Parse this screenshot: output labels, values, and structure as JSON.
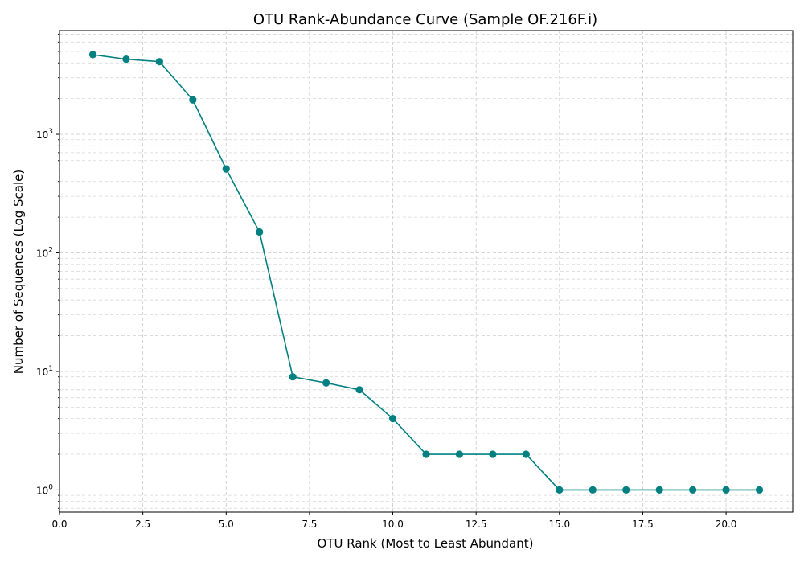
{
  "chart_data": {
    "type": "line",
    "title": "OTU Rank-Abundance Curve (Sample OF.216F.i)",
    "xlabel": "OTU Rank (Most to Least Abundant)",
    "ylabel": "Number of Sequences (Log Scale)",
    "y_scale": "log",
    "xlim": [
      0,
      22.0
    ],
    "ylim": [
      0.65,
      7500
    ],
    "x_ticks": [
      0,
      2.5,
      5.0,
      7.5,
      10.0,
      12.5,
      15.0,
      17.5,
      20.0
    ],
    "x_tick_labels": [
      "0.0",
      "2.5",
      "5.0",
      "7.5",
      "10.0",
      "12.5",
      "15.0",
      "17.5",
      "20.0"
    ],
    "y_ticks": [
      1,
      10,
      100,
      1000
    ],
    "y_tick_base": "10",
    "y_tick_exponents": [
      "0",
      "1",
      "2",
      "3"
    ],
    "grid": true,
    "legend": "none",
    "series_color": "#008080",
    "x": [
      1,
      2,
      3,
      4,
      5,
      6,
      7,
      8,
      9,
      10,
      11,
      12,
      13,
      14,
      15,
      16,
      17,
      18,
      19,
      20,
      21
    ],
    "series": [
      {
        "values": [
          4700,
          4300,
          4100,
          1950,
          510,
          150,
          9,
          8,
          7,
          4,
          2,
          2,
          2,
          2,
          1,
          1,
          1,
          1,
          1,
          1,
          1
        ]
      }
    ]
  }
}
